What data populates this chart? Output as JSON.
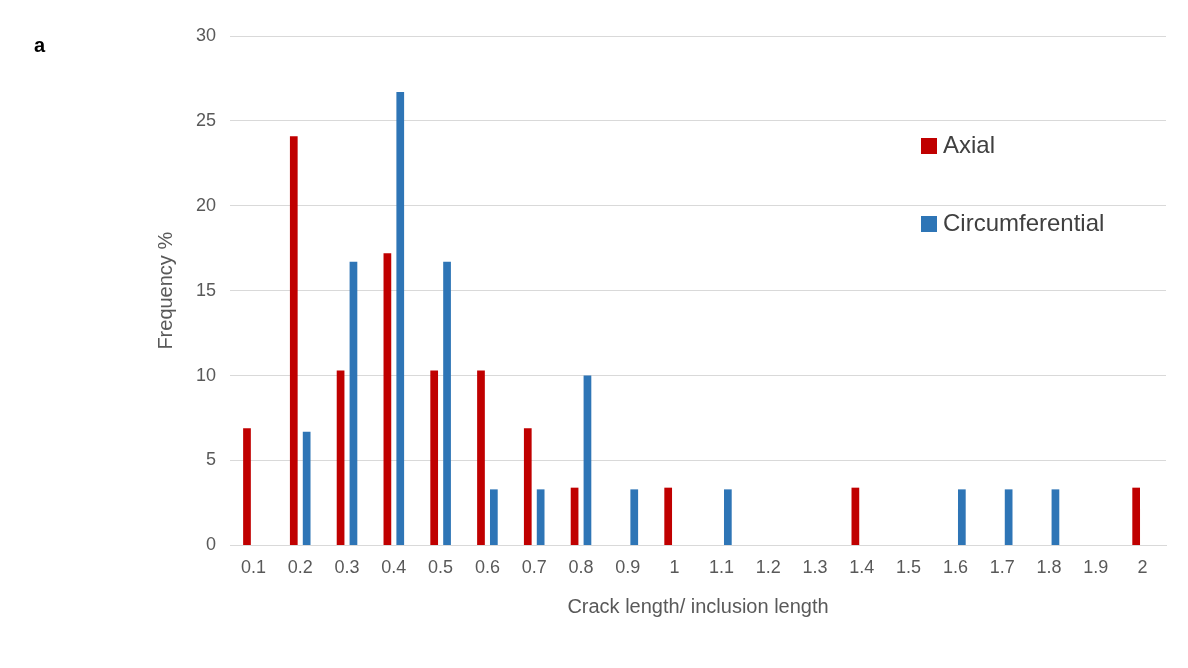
{
  "chart_data": {
    "type": "bar",
    "xlabel": "Crack length/ inclusion length",
    "ylabel": "Frequency %",
    "categories": [
      "0.1",
      "0.2",
      "0.3",
      "0.4",
      "0.5",
      "0.6",
      "0.7",
      "0.8",
      "0.9",
      "1",
      "1.1",
      "1.2",
      "1.3",
      "1.4",
      "1.5",
      "1.6",
      "1.7",
      "1.8",
      "1.9",
      "2"
    ],
    "series": [
      {
        "name": "Axial",
        "color": "#c00000",
        "values": [
          6.9,
          24.1,
          10.3,
          17.2,
          10.3,
          10.3,
          6.9,
          3.4,
          0,
          3.4,
          0,
          0,
          0,
          3.4,
          0,
          0,
          0,
          0,
          0,
          3.4
        ]
      },
      {
        "name": "Circumferential",
        "color": "#2e75b6",
        "values": [
          0,
          6.7,
          16.7,
          26.7,
          16.7,
          3.3,
          3.3,
          10,
          3.3,
          0,
          3.3,
          0,
          0,
          0,
          0,
          3.3,
          3.3,
          3.3,
          0,
          0
        ]
      }
    ],
    "ylim": [
      0,
      30
    ],
    "yticks": [
      0,
      5,
      10,
      15,
      20,
      25,
      30
    ],
    "grid": "y",
    "legend": "top right",
    "annotations": [
      "a"
    ]
  }
}
